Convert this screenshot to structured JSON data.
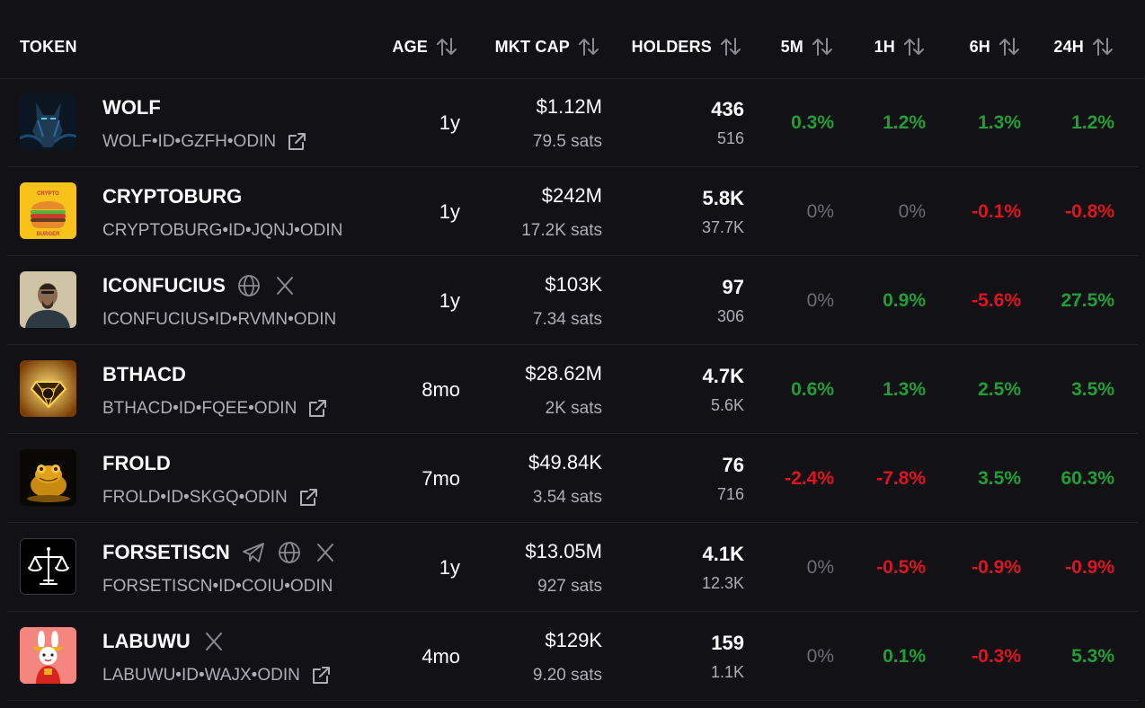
{
  "columns": {
    "token": "TOKEN",
    "age": "AGE",
    "mktcap": "MKT CAP",
    "holders": "HOLDERS",
    "m5": "5M",
    "h1": "1H",
    "h6": "6H",
    "h24": "24H"
  },
  "colors": {
    "positive": "#1fa035",
    "negative": "#e0141e",
    "zero": "#6d6d75"
  },
  "rows": [
    {
      "name": "WOLF",
      "id": "WOLF•ID•GZFH•ODIN",
      "age": "1y",
      "mktcap": "$1.12M",
      "price": "79.5 sats",
      "holders": "436",
      "holders_sub": "516",
      "m5": "0.3%",
      "h1": "1.2%",
      "h6": "1.3%",
      "h24": "1.2%",
      "logo_icon": "wolf-logo",
      "socials": [],
      "external": true
    },
    {
      "name": "CRYPTOBURG",
      "id": "CRYPTOBURG•ID•JQNJ•ODIN",
      "age": "1y",
      "mktcap": "$242M",
      "price": "17.2K sats",
      "holders": "5.8K",
      "holders_sub": "37.7K",
      "m5": "0%",
      "h1": "0%",
      "h6": "-0.1%",
      "h24": "-0.8%",
      "logo_icon": "burger-logo",
      "logo_text_top": "CRYPTO",
      "logo_text_bottom": "BURGER",
      "socials": [],
      "external": false
    },
    {
      "name": "ICONFUCIUS",
      "id": "ICONFUCIUS•ID•RVMN•ODIN",
      "age": "1y",
      "mktcap": "$103K",
      "price": "7.34 sats",
      "holders": "97",
      "holders_sub": "306",
      "m5": "0%",
      "h1": "0.9%",
      "h6": "-5.6%",
      "h24": "27.5%",
      "logo_icon": "portrait-logo",
      "socials": [
        "globe-icon",
        "x-icon"
      ],
      "external": false
    },
    {
      "name": "BTHACD",
      "id": "BTHACD•ID•FQEE•ODIN",
      "age": "8mo",
      "mktcap": "$28.62M",
      "price": "2K sats",
      "holders": "4.7K",
      "holders_sub": "5.6K",
      "m5": "0.6%",
      "h1": "1.3%",
      "h6": "2.5%",
      "h24": "3.5%",
      "logo_icon": "gold-diamond-logo",
      "socials": [],
      "external": true
    },
    {
      "name": "FROLD",
      "id": "FROLD•ID•SKGQ•ODIN",
      "age": "7mo",
      "mktcap": "$49.84K",
      "price": "3.54 sats",
      "holders": "76",
      "holders_sub": "716",
      "m5": "-2.4%",
      "h1": "-7.8%",
      "h6": "3.5%",
      "h24": "60.3%",
      "logo_icon": "gold-frog-logo",
      "socials": [],
      "external": true
    },
    {
      "name": "FORSETISCN",
      "id": "FORSETISCN•ID•COIU•ODIN",
      "age": "1y",
      "mktcap": "$13.05M",
      "price": "927 sats",
      "holders": "4.1K",
      "holders_sub": "12.3K",
      "m5": "0%",
      "h1": "-0.5%",
      "h6": "-0.9%",
      "h24": "-0.9%",
      "logo_icon": "scales-logo",
      "socials": [
        "telegram-icon",
        "globe-icon",
        "x-icon"
      ],
      "external": false
    },
    {
      "name": "LABUWU",
      "id": "LABUWU•ID•WAJX•ODIN",
      "age": "4mo",
      "mktcap": "$129K",
      "price": "9.20 sats",
      "holders": "159",
      "holders_sub": "1.1K",
      "m5": "0%",
      "h1": "0.1%",
      "h6": "-0.3%",
      "h24": "5.3%",
      "logo_icon": "bunny-logo",
      "socials": [
        "x-icon"
      ],
      "external": true
    }
  ]
}
